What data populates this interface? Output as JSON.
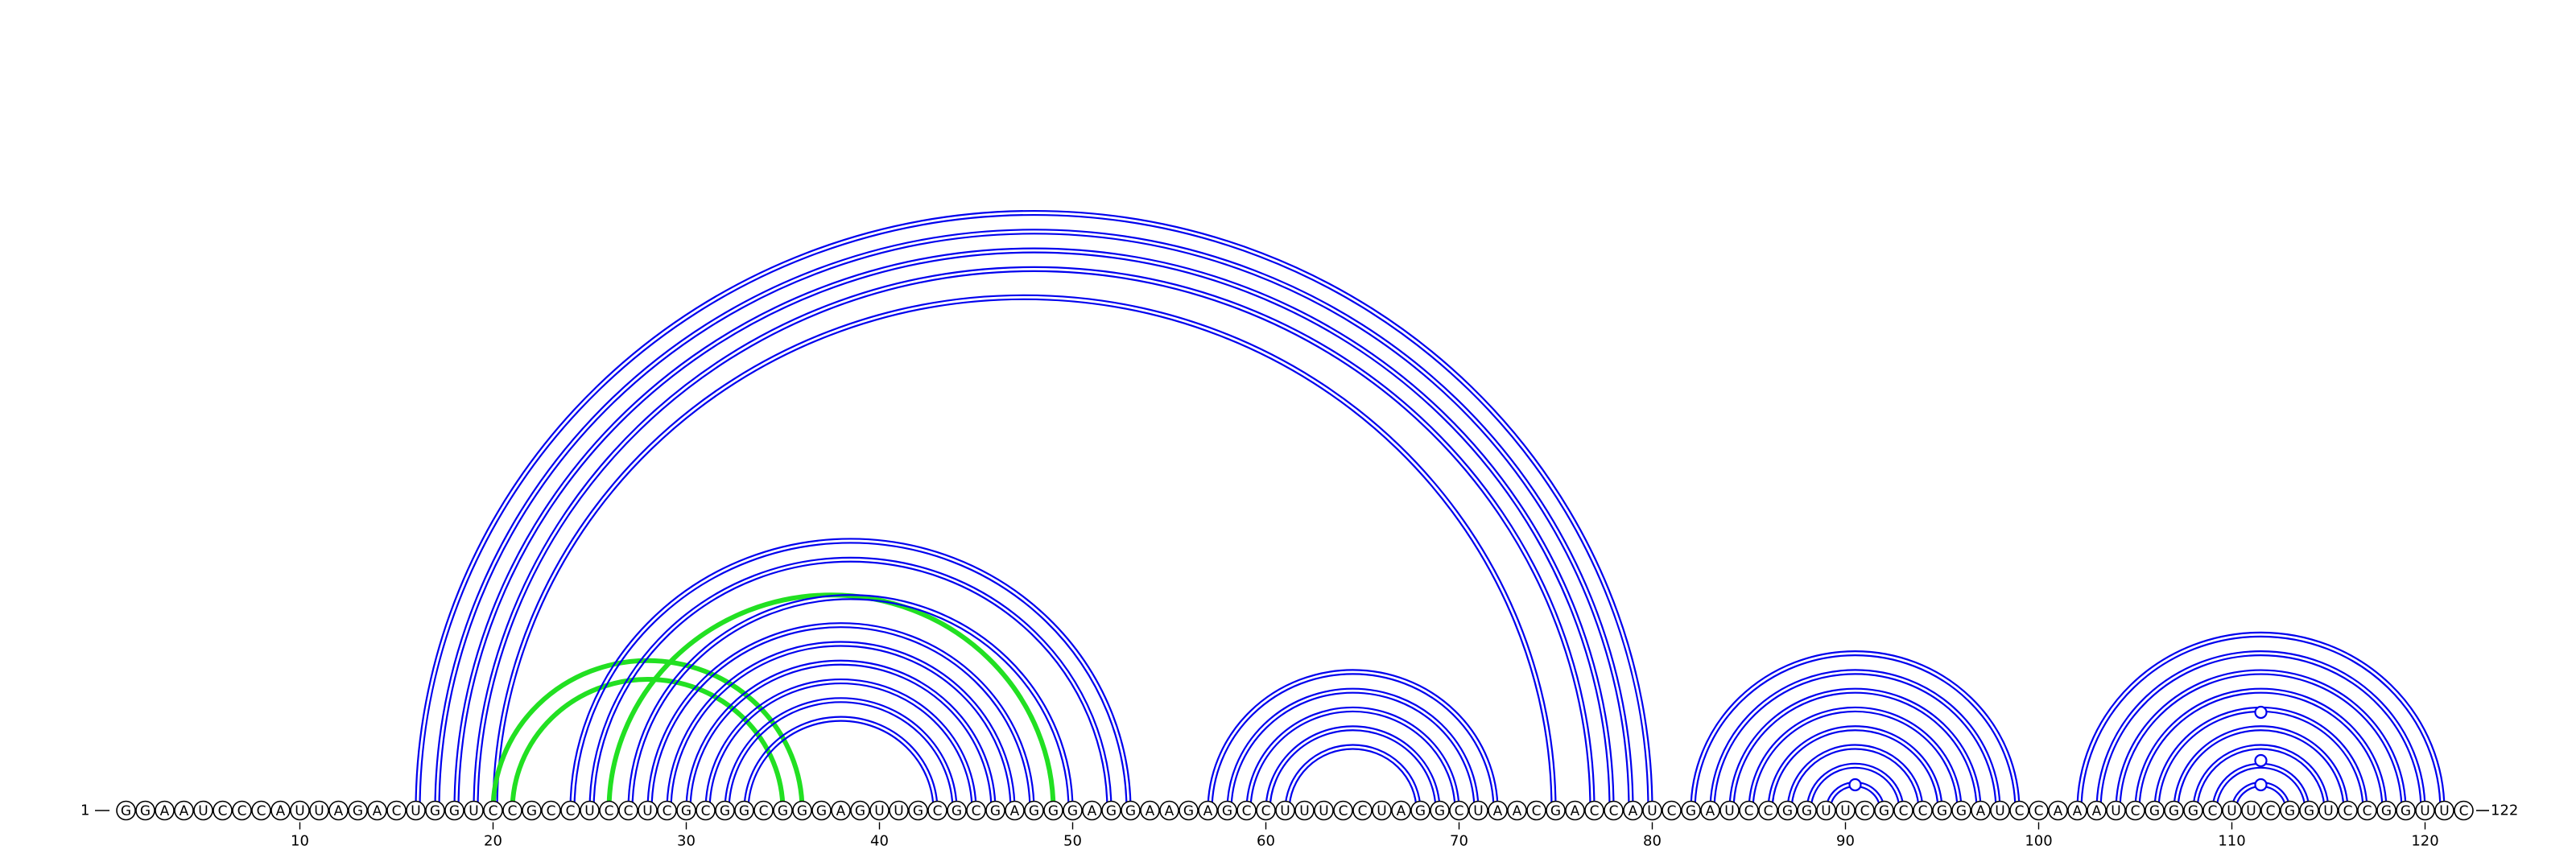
{
  "sequence": "GGAAUCCCAUUAGACUGGUCCGCCUCCUCGCGGCGGGAGUUGCGCGAGGGAGGAAGAGCCUUUCCUAGGCUAACGACCAUCGAUCCGGUUCGCCGGAUCCAAAUCGGGCUUCGGUCCGGUUC",
  "start_label": "1",
  "end_label": "122",
  "tick_labels": [
    "10",
    "20",
    "30",
    "40",
    "50",
    "60",
    "70",
    "80",
    "90",
    "100",
    "110",
    "120"
  ],
  "tick_positions": [
    10,
    20,
    30,
    40,
    50,
    60,
    70,
    80,
    90,
    100,
    110,
    120
  ],
  "colors": {
    "primary_arc": "#0000ee",
    "pseudoknot_arc": "#22e022",
    "nucleotide_outline": "#000000"
  },
  "pairs": [
    {
      "i": 16,
      "j": 80,
      "color": "blue"
    },
    {
      "i": 17,
      "j": 79,
      "color": "blue"
    },
    {
      "i": 18,
      "j": 78,
      "color": "blue"
    },
    {
      "i": 19,
      "j": 77,
      "color": "blue"
    },
    {
      "i": 20,
      "j": 75,
      "color": "blue"
    },
    {
      "i": 20,
      "j": 36,
      "color": "green"
    },
    {
      "i": 21,
      "j": 35,
      "color": "green"
    },
    {
      "i": 24,
      "j": 53,
      "color": "blue"
    },
    {
      "i": 25,
      "j": 52,
      "color": "blue"
    },
    {
      "i": 26,
      "j": 49,
      "color": "green"
    },
    {
      "i": 27,
      "j": 50,
      "color": "blue"
    },
    {
      "i": 28,
      "j": 48,
      "color": "blue"
    },
    {
      "i": 29,
      "j": 47,
      "color": "blue"
    },
    {
      "i": 30,
      "j": 46,
      "color": "blue"
    },
    {
      "i": 31,
      "j": 45,
      "color": "blue"
    },
    {
      "i": 32,
      "j": 44,
      "color": "blue"
    },
    {
      "i": 33,
      "j": 43,
      "color": "blue"
    },
    {
      "i": 57,
      "j": 72,
      "color": "blue"
    },
    {
      "i": 58,
      "j": 71,
      "color": "blue"
    },
    {
      "i": 59,
      "j": 70,
      "color": "blue"
    },
    {
      "i": 60,
      "j": 69,
      "color": "blue"
    },
    {
      "i": 61,
      "j": 68,
      "color": "blue"
    },
    {
      "i": 82,
      "j": 99,
      "color": "blue"
    },
    {
      "i": 83,
      "j": 98,
      "color": "blue"
    },
    {
      "i": 84,
      "j": 97,
      "color": "blue"
    },
    {
      "i": 85,
      "j": 96,
      "color": "blue"
    },
    {
      "i": 86,
      "j": 95,
      "color": "blue"
    },
    {
      "i": 87,
      "j": 94,
      "color": "blue"
    },
    {
      "i": 88,
      "j": 93,
      "color": "blue"
    },
    {
      "i": 89,
      "j": 92,
      "color": "blue"
    },
    {
      "i": 102,
      "j": 121,
      "color": "blue"
    },
    {
      "i": 103,
      "j": 120,
      "color": "blue"
    },
    {
      "i": 104,
      "j": 119,
      "color": "blue"
    },
    {
      "i": 105,
      "j": 118,
      "color": "blue"
    },
    {
      "i": 106,
      "j": 117,
      "color": "blue"
    },
    {
      "i": 107,
      "j": 116,
      "color": "blue"
    },
    {
      "i": 108,
      "j": 115,
      "color": "blue"
    },
    {
      "i": 109,
      "j": 114,
      "color": "blue"
    },
    {
      "i": 110,
      "j": 113,
      "color": "blue"
    }
  ],
  "markers": [
    {
      "pos": 90.5,
      "level": 1
    },
    {
      "pos": 111.5,
      "level": 1
    },
    {
      "pos": 111.5,
      "level": 2
    },
    {
      "pos": 111.5,
      "level": 4
    }
  ]
}
